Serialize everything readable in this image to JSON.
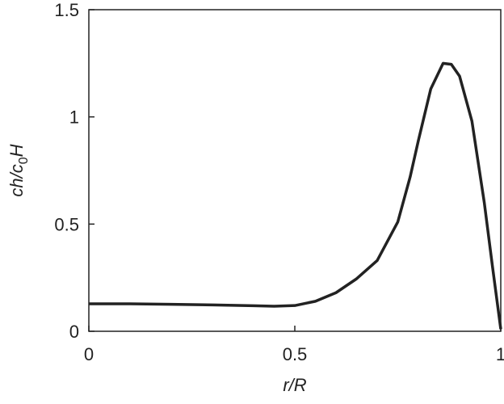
{
  "chart_data": {
    "type": "line",
    "xlabel": "r/R",
    "ylabel": [
      "ch/c",
      "0",
      "H"
    ],
    "xlim": [
      0,
      1
    ],
    "ylim": [
      0,
      1.5
    ],
    "xticks": [
      0,
      0.5,
      1
    ],
    "yticks": [
      0,
      0.5,
      1,
      1.5
    ],
    "grid": false,
    "series": [
      {
        "color": "#222222",
        "x": [
          0,
          0.1,
          0.2,
          0.3,
          0.4,
          0.45,
          0.5,
          0.55,
          0.6,
          0.65,
          0.7,
          0.75,
          0.78,
          0.8,
          0.83,
          0.86,
          0.88,
          0.9,
          0.93,
          0.96,
          0.98,
          1.0
        ],
        "values": [
          0.128,
          0.128,
          0.126,
          0.123,
          0.119,
          0.117,
          0.12,
          0.14,
          0.18,
          0.245,
          0.33,
          0.51,
          0.72,
          0.89,
          1.13,
          1.25,
          1.245,
          1.19,
          0.98,
          0.6,
          0.3,
          0.01
        ]
      }
    ]
  }
}
